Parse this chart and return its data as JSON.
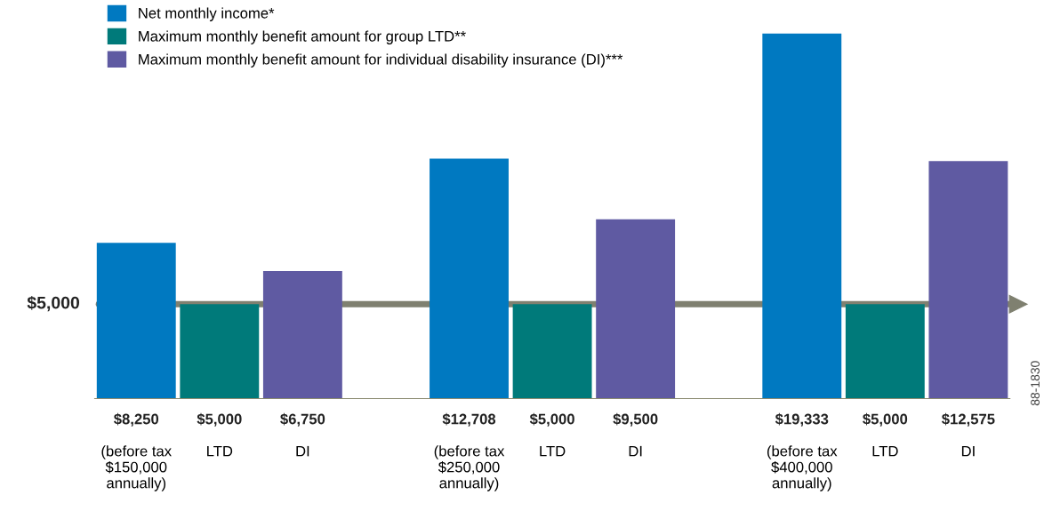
{
  "chart_data": {
    "type": "bar",
    "categories": [
      "(before tax\n$150,000\nannually)",
      "LTD",
      "DI",
      null,
      "(before tax\n$250,000\nannually)",
      "LTD",
      "DI",
      null,
      "(before tax\n$400,000\nannually)",
      "LTD",
      "DI"
    ],
    "series": [
      {
        "name": "Net monthly income*",
        "color": "#0079c1",
        "values": [
          8250,
          null,
          null,
          null,
          12708,
          null,
          null,
          null,
          19333,
          null,
          null
        ],
        "value_labels": [
          "$8,250",
          null,
          null,
          null,
          "$12,708",
          null,
          null,
          null,
          "$19,333",
          null,
          null
        ]
      },
      {
        "name": "Maximum monthly benefit amount for group LTD**",
        "color": "#007a7a",
        "values": [
          null,
          5000,
          null,
          null,
          null,
          5000,
          null,
          null,
          null,
          5000,
          null
        ],
        "value_labels": [
          null,
          "$5,000",
          null,
          null,
          null,
          "$5,000",
          null,
          null,
          null,
          "$5,000",
          null
        ]
      },
      {
        "name": "Maximum monthly benefit amount for individual disability insurance (DI)***",
        "color": "#5f5aa2",
        "values": [
          null,
          null,
          6750,
          null,
          null,
          null,
          9500,
          null,
          null,
          null,
          12575
        ],
        "value_labels": [
          null,
          null,
          "$6,750",
          null,
          null,
          null,
          "$9,500",
          null,
          null,
          null,
          "$12,575"
        ]
      }
    ],
    "ref_lines": [
      {
        "axis": "y",
        "value": 5000,
        "label": "$5,000",
        "color": "#7f8070"
      }
    ],
    "annotations": [
      "88-1830"
    ],
    "legend": "top left",
    "grid": false
  }
}
